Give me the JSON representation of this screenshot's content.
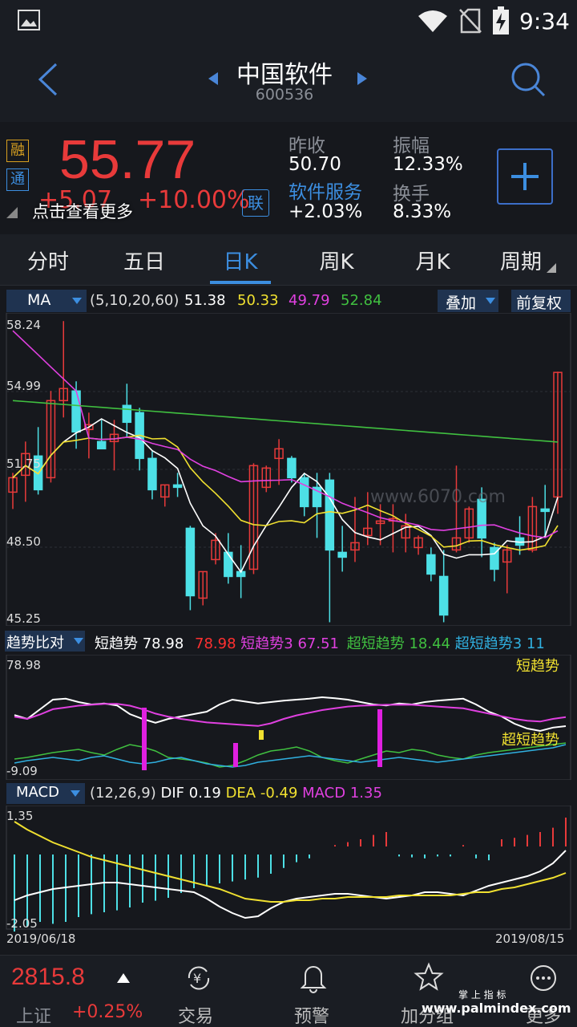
{
  "status": {
    "time": "9:34"
  },
  "header": {
    "title": "中国软件",
    "code": "600536"
  },
  "quote": {
    "price": "55.77",
    "change": "+5.07",
    "change_pct": "+10.00%",
    "badge_rong": "融",
    "badge_tong": "通",
    "badge_lian": "联",
    "hint": "点击查看更多",
    "prev_close_label": "昨收",
    "prev_close": "50.70",
    "amplitude_label": "振幅",
    "amplitude": "12.33%",
    "sector": "软件服务",
    "sector_change": "+2.03%",
    "turnover_label": "换手",
    "turnover": "8.33%"
  },
  "tabs": [
    "分时",
    "五日",
    "日K",
    "周K",
    "月K",
    "周期"
  ],
  "active_tab": "日K",
  "ma": {
    "label": "MA",
    "params": "(5,10,20,60)",
    "values": [
      "51.38",
      "50.33",
      "49.79",
      "52.84"
    ],
    "colors": [
      "#ffffff",
      "#f0e030",
      "#e040e0",
      "#40c040"
    ],
    "overlay": "叠加",
    "adjust": "前复权"
  },
  "kline": {
    "y_ticks": [
      "58.24",
      "54.99",
      "51.75",
      "48.50",
      "45.25"
    ],
    "watermark": "www.6070.com"
  },
  "trend": {
    "label": "趋势比对",
    "items": [
      {
        "text": "短趋势",
        "color": "#ffffff"
      },
      {
        "text": "78.98",
        "color": "#ffffff"
      },
      {
        "text": "78.98",
        "color": "#ff3030"
      },
      {
        "text": "短趋势3",
        "color": "#e040e0"
      },
      {
        "text": "67.51",
        "color": "#e040e0"
      },
      {
        "text": "超短趋势",
        "color": "#40c040"
      },
      {
        "text": "18.44",
        "color": "#40c040"
      },
      {
        "text": "超短趋势3",
        "color": "#30b0e0"
      },
      {
        "text": "11",
        "color": "#30b0e0"
      }
    ],
    "top": "78.98",
    "bottom": "-9.09",
    "annot_short": "短趋势",
    "annot_ultra": "超短趋势"
  },
  "macd": {
    "label": "MACD",
    "params": "(12,26,9)",
    "dif_label": "DIF",
    "dif": "0.19",
    "dea_label": "DEA",
    "dea": "-0.49",
    "macd_label": "MACD",
    "macd": "1.35",
    "top": "1.35",
    "bottom": "-2.05",
    "date_start": "2019/06/18",
    "date_end": "2019/08/15"
  },
  "index": {
    "value": "2815.8",
    "name": "上证",
    "change": "+0.25%"
  },
  "nav": [
    {
      "label": "交易",
      "icon": "yuan-exchange-icon"
    },
    {
      "label": "预警",
      "icon": "bell-icon"
    },
    {
      "label": "加分组",
      "icon": "star-icon"
    },
    {
      "label": "更多",
      "icon": "more-icon"
    }
  ],
  "footer_watermark": {
    "line1": "掌 上 指 标",
    "line2": "www.palmindex.com"
  }
}
